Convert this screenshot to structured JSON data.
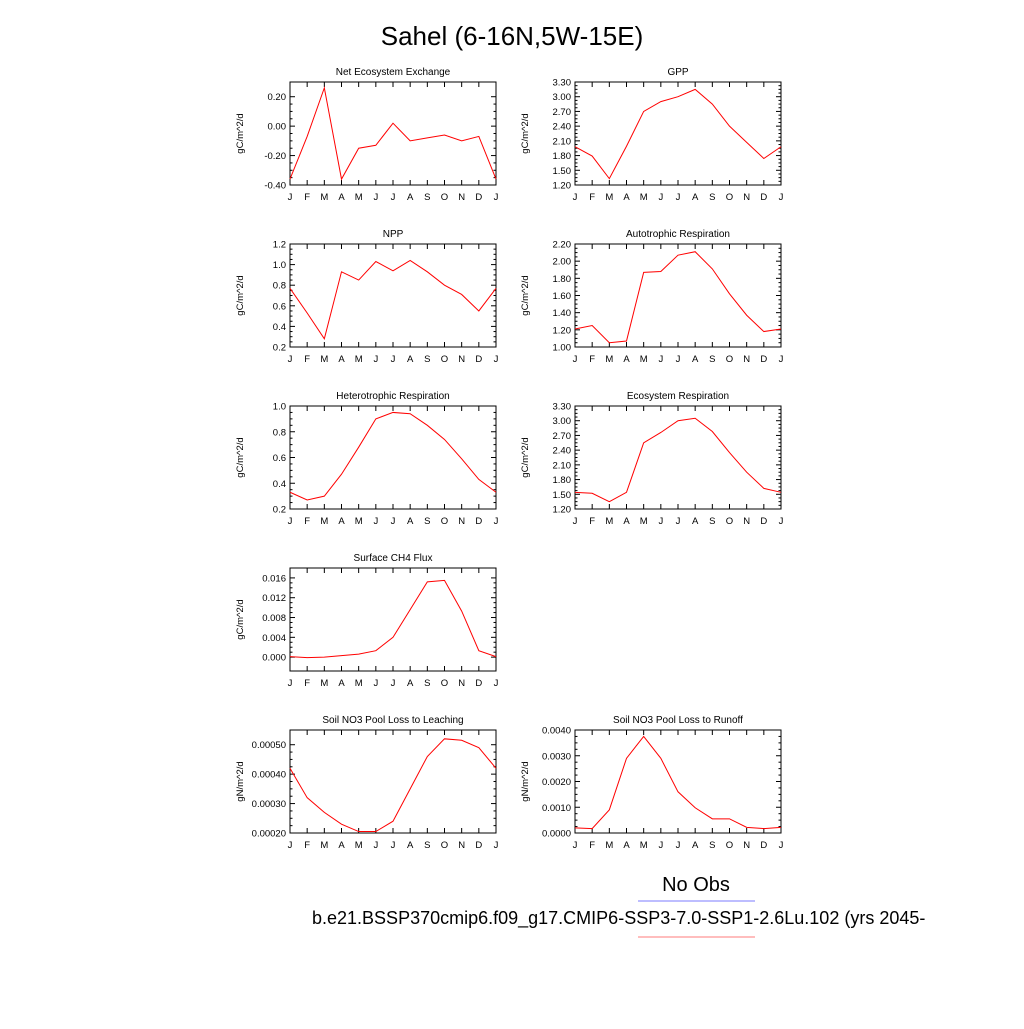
{
  "title": "Sahel (6-16N,5W-15E)",
  "legend": {
    "obs_label": "No Obs",
    "obs_color": "#7b7bff",
    "case_label": "b.e21.BSSP370cmip6.f09_g17.CMIP6-SSP3-7.0-SSP1-2.6Lu.102 (yrs 2045-",
    "case_color": "#ff7b7b"
  },
  "series_color": "#ff0000",
  "months": [
    "J",
    "F",
    "M",
    "A",
    "M",
    "J",
    "J",
    "A",
    "S",
    "O",
    "N",
    "D",
    "J"
  ],
  "chart_data": [
    {
      "type": "line",
      "title": "Net Ecosystem Exchange",
      "ylabel": "gC/m^2/d",
      "x": [
        "J",
        "F",
        "M",
        "A",
        "M",
        "J",
        "J",
        "A",
        "S",
        "O",
        "N",
        "D",
        "J"
      ],
      "ylim": [
        -0.4,
        0.3
      ],
      "yticks": [
        -0.4,
        -0.2,
        0.0,
        0.2
      ],
      "yticklabels": [
        "-0.40",
        "-0.20",
        "0.00",
        "0.20"
      ],
      "values": [
        -0.36,
        -0.07,
        0.26,
        -0.36,
        -0.15,
        -0.13,
        0.02,
        -0.1,
        -0.08,
        -0.06,
        -0.1,
        -0.07,
        -0.36
      ]
    },
    {
      "type": "line",
      "title": "GPP",
      "ylabel": "gC/m^2/d",
      "x": [
        "J",
        "F",
        "M",
        "A",
        "M",
        "J",
        "J",
        "A",
        "S",
        "O",
        "N",
        "D",
        "J"
      ],
      "ylim": [
        1.2,
        3.3
      ],
      "yticks": [
        1.2,
        1.5,
        1.8,
        2.1,
        2.4,
        2.7,
        3.0,
        3.3
      ],
      "yticklabels": [
        "1.20",
        "1.50",
        "1.80",
        "2.10",
        "2.40",
        "2.70",
        "3.00",
        "3.30"
      ],
      "values": [
        1.98,
        1.79,
        1.33,
        1.99,
        2.7,
        2.9,
        3.0,
        3.15,
        2.85,
        2.4,
        2.07,
        1.74,
        1.98
      ]
    },
    {
      "type": "line",
      "title": "NPP",
      "ylabel": "gC/m^2/d",
      "x": [
        "J",
        "F",
        "M",
        "A",
        "M",
        "J",
        "J",
        "A",
        "S",
        "O",
        "N",
        "D",
        "J"
      ],
      "ylim": [
        0.2,
        1.2
      ],
      "yticks": [
        0.2,
        0.4,
        0.6,
        0.8,
        1.0,
        1.2
      ],
      "yticklabels": [
        "0.2",
        "0.4",
        "0.6",
        "0.8",
        "1.0",
        "1.2"
      ],
      "values": [
        0.77,
        0.53,
        0.28,
        0.93,
        0.85,
        1.03,
        0.94,
        1.04,
        0.93,
        0.8,
        0.71,
        0.55,
        0.77
      ]
    },
    {
      "type": "line",
      "title": "Autotrophic Respiration",
      "ylabel": "gC/m^2/d",
      "x": [
        "J",
        "F",
        "M",
        "A",
        "M",
        "J",
        "J",
        "A",
        "S",
        "O",
        "N",
        "D",
        "J"
      ],
      "ylim": [
        1.0,
        2.2
      ],
      "yticks": [
        1.0,
        1.2,
        1.4,
        1.6,
        1.8,
        2.0,
        2.2
      ],
      "yticklabels": [
        "1.00",
        "1.20",
        "1.40",
        "1.60",
        "1.80",
        "2.00",
        "2.20"
      ],
      "values": [
        1.21,
        1.25,
        1.05,
        1.07,
        1.87,
        1.88,
        2.07,
        2.11,
        1.91,
        1.62,
        1.37,
        1.18,
        1.21
      ]
    },
    {
      "type": "line",
      "title": "Heterotrophic Respiration",
      "ylabel": "gC/m^2/d",
      "x": [
        "J",
        "F",
        "M",
        "A",
        "M",
        "J",
        "J",
        "A",
        "S",
        "O",
        "N",
        "D",
        "J"
      ],
      "ylim": [
        0.2,
        1.0
      ],
      "yticks": [
        0.2,
        0.4,
        0.6,
        0.8,
        1.0
      ],
      "yticklabels": [
        "0.2",
        "0.4",
        "0.6",
        "0.8",
        "1.0"
      ],
      "values": [
        0.33,
        0.27,
        0.3,
        0.47,
        0.68,
        0.9,
        0.95,
        0.94,
        0.85,
        0.74,
        0.59,
        0.43,
        0.33
      ]
    },
    {
      "type": "line",
      "title": "Ecosystem Respiration",
      "ylabel": "gC/m^2/d",
      "x": [
        "J",
        "F",
        "M",
        "A",
        "M",
        "J",
        "J",
        "A",
        "S",
        "O",
        "N",
        "D",
        "J"
      ],
      "ylim": [
        1.2,
        3.3
      ],
      "yticks": [
        1.2,
        1.5,
        1.8,
        2.1,
        2.4,
        2.7,
        3.0,
        3.3
      ],
      "yticklabels": [
        "1.20",
        "1.50",
        "1.80",
        "2.10",
        "2.40",
        "2.70",
        "3.00",
        "3.30"
      ],
      "values": [
        1.54,
        1.52,
        1.35,
        1.54,
        2.55,
        2.76,
        3.0,
        3.05,
        2.78,
        2.35,
        1.95,
        1.62,
        1.54
      ]
    },
    {
      "type": "line",
      "title": "Surface CH4 Flux",
      "ylabel": "gC/m^2/d",
      "x": [
        "J",
        "F",
        "M",
        "A",
        "M",
        "J",
        "J",
        "A",
        "S",
        "O",
        "N",
        "D",
        "J"
      ],
      "ylim": [
        -0.0028,
        0.018
      ],
      "yticks": [
        0.0,
        0.004,
        0.008,
        0.012,
        0.016
      ],
      "yticklabels": [
        "0.000",
        "0.004",
        "0.008",
        "0.012",
        "0.016"
      ],
      "values": [
        0.0001,
        -0.0001,
        0.0,
        0.0003,
        0.0006,
        0.0013,
        0.004,
        0.0096,
        0.0152,
        0.0155,
        0.0093,
        0.0013,
        0.0001
      ]
    },
    {
      "type": "line",
      "title": "Soil NO3 Pool Loss to Leaching",
      "ylabel": "gN/m^2/d",
      "x": [
        "J",
        "F",
        "M",
        "A",
        "M",
        "J",
        "J",
        "A",
        "S",
        "O",
        "N",
        "D",
        "J"
      ],
      "ylim": [
        0.0002,
        0.00055
      ],
      "yticks": [
        0.0002,
        0.0003,
        0.0004,
        0.0005
      ],
      "yticklabels": [
        "0.00020",
        "0.00030",
        "0.00040",
        "0.00050"
      ],
      "values": [
        0.00042,
        0.00032,
        0.00027,
        0.00023,
        0.000205,
        0.000205,
        0.00024,
        0.00035,
        0.00046,
        0.00052,
        0.000515,
        0.00049,
        0.00042
      ]
    },
    {
      "type": "line",
      "title": "Soil NO3 Pool Loss to Runoff",
      "ylabel": "gN/m^2/d",
      "x": [
        "J",
        "F",
        "M",
        "A",
        "M",
        "J",
        "J",
        "A",
        "S",
        "O",
        "N",
        "D",
        "J"
      ],
      "ylim": [
        0.0,
        0.004
      ],
      "yticks": [
        0.0,
        0.001,
        0.002,
        0.003,
        0.004
      ],
      "yticklabels": [
        "0.0000",
        "0.0010",
        "0.0020",
        "0.0030",
        "0.0040"
      ],
      "values": [
        0.0002,
        0.00017,
        0.0009,
        0.0029,
        0.00375,
        0.0029,
        0.0016,
        0.00098,
        0.00055,
        0.00055,
        0.00022,
        0.00017,
        0.00022
      ]
    }
  ]
}
